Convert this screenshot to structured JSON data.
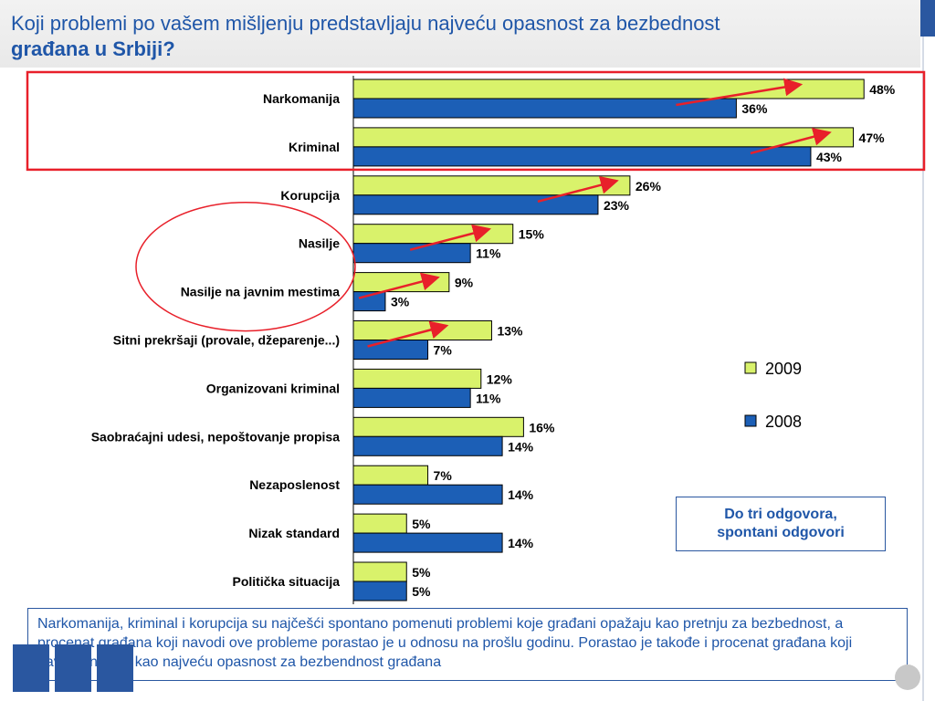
{
  "title": {
    "line1": "Koji problemi po vašem mišljenju predstavljaju najveću opasnost za bezbednost",
    "line2": "građana u Srbiji?"
  },
  "colors": {
    "series_2009": "#d9f26b",
    "series_2008": "#1c5fb6",
    "highlight": "#e8202a",
    "accent_blue": "#1f56a8"
  },
  "chart_data": {
    "type": "bar",
    "orientation": "horizontal",
    "categories": [
      "Narkomanija",
      "Kriminal",
      "Korupcija",
      "Nasilje",
      "Nasilje na javnim mestima",
      "Sitni prekršaji (provale, džeparenje...)",
      "Organizovani kriminal",
      "Saobraćajni udesi, nepoštovanje propisa",
      "Nezaposlenost",
      "Nizak standard",
      "Politička situacija"
    ],
    "series": [
      {
        "name": "2009",
        "values": [
          48,
          47,
          26,
          15,
          9,
          13,
          12,
          16,
          7,
          5,
          5
        ]
      },
      {
        "name": "2008",
        "values": [
          36,
          43,
          23,
          11,
          3,
          7,
          11,
          14,
          14,
          14,
          5
        ]
      }
    ],
    "value_suffix": "%",
    "legend_position": "right",
    "grid": false,
    "increase_arrows": [
      0,
      1,
      2,
      3,
      4,
      5
    ],
    "highlight_box_categories": [
      0,
      1
    ],
    "highlight_ellipse_categories": [
      3,
      4
    ]
  },
  "note": {
    "line1": "Do tri odgovora,",
    "line2": "spontani odgovori"
  },
  "summary": "Narkomanija, kriminal i korupcija su najčešći spontano pomenuti problemi koje građani opažaju kao pretnju za bezbednost, a procenat građana koji navodi ove probleme porastao je u odnosu na prošlu godinu. Porastao je takođe i procenat građana koji navode nasilje kao najveću opasnost za bezbendnost građana"
}
